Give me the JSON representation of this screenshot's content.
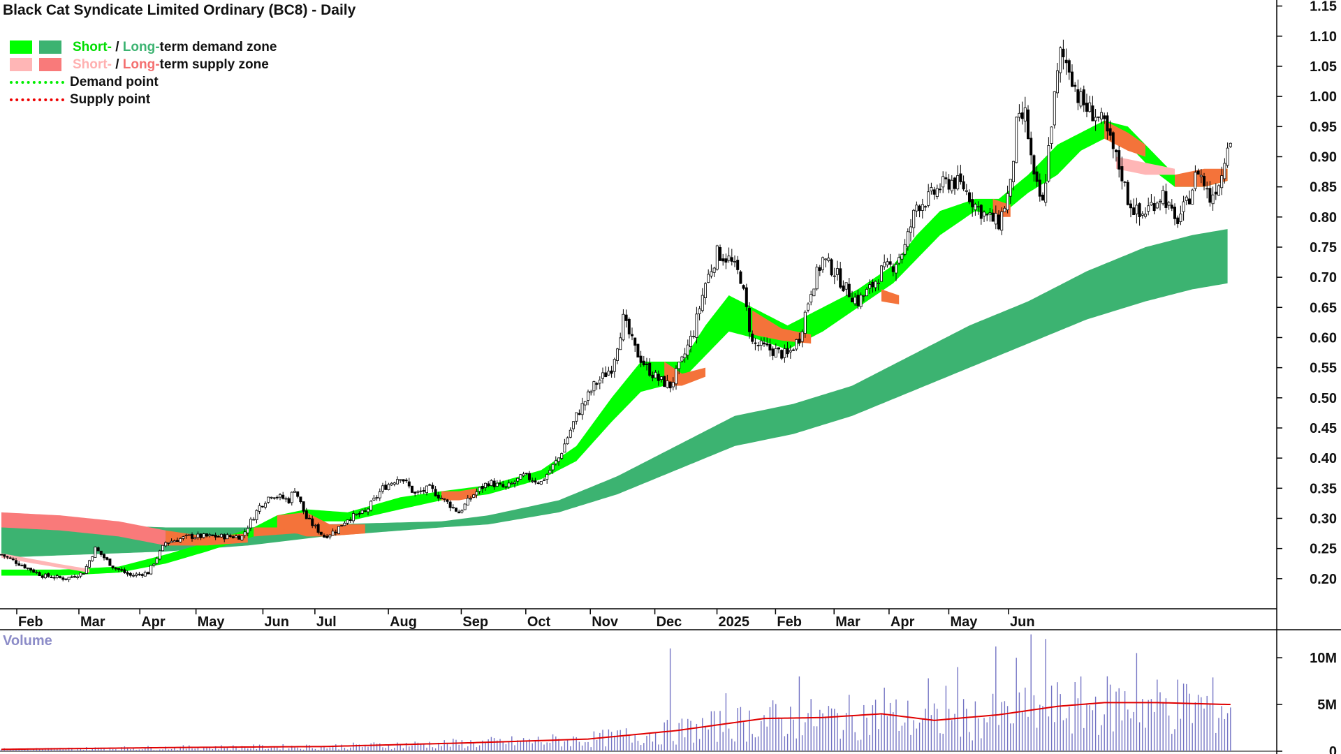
{
  "title": "Black Cat Syndicate Limited Ordinary (BC8) - Daily",
  "legend": {
    "demand_zone": {
      "short": "Short-",
      "sep": " / ",
      "long": "Long-",
      "rest": "term demand zone"
    },
    "supply_zone": {
      "short": "Short-",
      "sep": " / ",
      "long": "Long-",
      "rest": "term supply zone"
    },
    "demand_point": "Demand point",
    "supply_point": "Supply point"
  },
  "volume_label": "Volume",
  "colors": {
    "short_demand": "#00ff00",
    "long_demand": "#3cb371",
    "short_supply": "#ffb6b6",
    "long_supply": "#f97a7a",
    "overlap": "#f4733a",
    "demand_point": "#00ee00",
    "supply_point": "#ee0000",
    "volume_bar": "#7474c4",
    "volume_ma": "#e00000"
  },
  "chart_data": [
    {
      "type": "candlestick",
      "title": "Black Cat Syndicate Limited Ordinary (BC8) - Daily",
      "ylim": [
        0.15,
        1.16
      ],
      "y_ticks": [
        "1.15",
        "1.10",
        "1.05",
        "1.00",
        "0.95",
        "0.90",
        "0.85",
        "0.80",
        "0.75",
        "0.70",
        "0.65",
        "0.60",
        "0.55",
        "0.50",
        "0.45",
        "0.40",
        "0.35",
        "0.30",
        "0.25",
        "0.20"
      ],
      "x_ticks": [
        "Feb",
        "Mar",
        "Apr",
        "May",
        "Jun",
        "Jul",
        "Aug",
        "Sep",
        "Oct",
        "Nov",
        "Dec",
        "2025",
        "Feb",
        "Mar",
        "Apr",
        "May",
        "Jun"
      ],
      "close_anchors": [
        [
          0,
          0.24
        ],
        [
          8,
          0.22
        ],
        [
          14,
          0.205
        ],
        [
          22,
          0.2
        ],
        [
          28,
          0.21
        ],
        [
          32,
          0.25
        ],
        [
          38,
          0.22
        ],
        [
          44,
          0.205
        ],
        [
          50,
          0.21
        ],
        [
          56,
          0.26
        ],
        [
          64,
          0.27
        ],
        [
          72,
          0.27
        ],
        [
          82,
          0.27
        ],
        [
          88,
          0.32
        ],
        [
          92,
          0.34
        ],
        [
          98,
          0.33
        ],
        [
          100,
          0.35
        ],
        [
          104,
          0.3
        ],
        [
          110,
          0.27
        ],
        [
          114,
          0.28
        ],
        [
          118,
          0.3
        ],
        [
          124,
          0.31
        ],
        [
          130,
          0.35
        ],
        [
          136,
          0.37
        ],
        [
          141,
          0.34
        ],
        [
          146,
          0.35
        ],
        [
          151,
          0.33
        ],
        [
          156,
          0.31
        ],
        [
          161,
          0.34
        ],
        [
          166,
          0.36
        ],
        [
          172,
          0.35
        ],
        [
          178,
          0.37
        ],
        [
          184,
          0.36
        ],
        [
          190,
          0.4
        ],
        [
          196,
          0.47
        ],
        [
          202,
          0.52
        ],
        [
          208,
          0.55
        ],
        [
          212,
          0.63
        ],
        [
          216,
          0.58
        ],
        [
          220,
          0.55
        ],
        [
          224,
          0.53
        ],
        [
          228,
          0.52
        ],
        [
          232,
          0.56
        ],
        [
          236,
          0.61
        ],
        [
          240,
          0.69
        ],
        [
          244,
          0.74
        ],
        [
          248,
          0.73
        ],
        [
          252,
          0.7
        ],
        [
          256,
          0.59
        ],
        [
          262,
          0.58
        ],
        [
          268,
          0.57
        ],
        [
          272,
          0.6
        ],
        [
          276,
          0.68
        ],
        [
          280,
          0.73
        ],
        [
          284,
          0.71
        ],
        [
          288,
          0.68
        ],
        [
          292,
          0.66
        ],
        [
          296,
          0.68
        ],
        [
          300,
          0.71
        ],
        [
          304,
          0.72
        ],
        [
          308,
          0.75
        ],
        [
          312,
          0.82
        ],
        [
          316,
          0.83
        ],
        [
          320,
          0.85
        ],
        [
          324,
          0.86
        ],
        [
          328,
          0.85
        ],
        [
          332,
          0.82
        ],
        [
          336,
          0.8
        ],
        [
          340,
          0.79
        ],
        [
          344,
          0.85
        ],
        [
          346,
          0.95
        ],
        [
          349,
          0.97
        ],
        [
          352,
          0.86
        ],
        [
          355,
          0.82
        ],
        [
          358,
          0.96
        ],
        [
          361,
          1.07
        ],
        [
          364,
          1.05
        ],
        [
          367,
          1.0
        ],
        [
          370,
          0.98
        ],
        [
          373,
          0.97
        ],
        [
          376,
          0.95
        ],
        [
          379,
          0.91
        ],
        [
          382,
          0.87
        ],
        [
          384,
          0.83
        ],
        [
          388,
          0.8
        ],
        [
          392,
          0.82
        ],
        [
          396,
          0.84
        ],
        [
          400,
          0.79
        ],
        [
          404,
          0.82
        ],
        [
          408,
          0.88
        ],
        [
          412,
          0.83
        ],
        [
          416,
          0.87
        ],
        [
          418,
          0.93
        ]
      ],
      "short_demand_band_anchors": [
        [
          0,
          0.205,
          0.215
        ],
        [
          20,
          0.205,
          0.215
        ],
        [
          40,
          0.21,
          0.22
        ],
        [
          56,
          0.225,
          0.24
        ],
        [
          70,
          0.245,
          0.26
        ],
        [
          86,
          0.27,
          0.285
        ],
        [
          94,
          0.285,
          0.305
        ],
        [
          104,
          0.295,
          0.315
        ],
        [
          118,
          0.295,
          0.31
        ],
        [
          136,
          0.315,
          0.335
        ],
        [
          150,
          0.33,
          0.345
        ],
        [
          166,
          0.34,
          0.355
        ],
        [
          184,
          0.365,
          0.38
        ],
        [
          196,
          0.395,
          0.42
        ],
        [
          208,
          0.46,
          0.5
        ],
        [
          218,
          0.51,
          0.56
        ],
        [
          226,
          0.52,
          0.56
        ],
        [
          232,
          0.53,
          0.56
        ],
        [
          240,
          0.57,
          0.62
        ],
        [
          248,
          0.61,
          0.67
        ],
        [
          256,
          0.6,
          0.65
        ],
        [
          268,
          0.58,
          0.62
        ],
        [
          280,
          0.61,
          0.65
        ],
        [
          292,
          0.65,
          0.68
        ],
        [
          304,
          0.69,
          0.72
        ],
        [
          312,
          0.73,
          0.77
        ],
        [
          320,
          0.77,
          0.81
        ],
        [
          332,
          0.81,
          0.83
        ],
        [
          340,
          0.8,
          0.83
        ],
        [
          350,
          0.84,
          0.87
        ],
        [
          360,
          0.87,
          0.92
        ],
        [
          368,
          0.91,
          0.94
        ],
        [
          376,
          0.93,
          0.96
        ],
        [
          384,
          0.92,
          0.95
        ],
        [
          392,
          0.88,
          0.91
        ],
        [
          400,
          0.85,
          0.87
        ],
        [
          410,
          0.85,
          0.87
        ],
        [
          418,
          0.86,
          0.88
        ]
      ],
      "long_demand_band_anchors": [
        [
          0,
          0.235,
          0.295
        ],
        [
          56,
          0.245,
          0.285
        ],
        [
          84,
          0.255,
          0.285
        ],
        [
          110,
          0.27,
          0.29
        ],
        [
          150,
          0.285,
          0.295
        ],
        [
          166,
          0.29,
          0.305
        ],
        [
          190,
          0.31,
          0.33
        ],
        [
          210,
          0.34,
          0.37
        ],
        [
          230,
          0.38,
          0.42
        ],
        [
          250,
          0.42,
          0.47
        ],
        [
          270,
          0.44,
          0.49
        ],
        [
          290,
          0.47,
          0.52
        ],
        [
          310,
          0.51,
          0.57
        ],
        [
          330,
          0.55,
          0.62
        ],
        [
          350,
          0.59,
          0.66
        ],
        [
          370,
          0.63,
          0.71
        ],
        [
          390,
          0.66,
          0.75
        ],
        [
          406,
          0.68,
          0.77
        ],
        [
          418,
          0.69,
          0.78
        ]
      ],
      "short_supply_segments": [
        [
          [
            0,
            0.235,
            0.242
          ],
          [
            10,
            0.226,
            0.233
          ],
          [
            20,
            0.218,
            0.224
          ],
          [
            30,
            0.21,
            0.216
          ]
        ],
        [
          [
            380,
            0.88,
            0.9
          ],
          [
            390,
            0.87,
            0.89
          ],
          [
            400,
            0.87,
            0.88
          ]
        ]
      ],
      "long_supply_segments": [
        [
          [
            0,
            0.285,
            0.31
          ],
          [
            20,
            0.28,
            0.305
          ],
          [
            40,
            0.27,
            0.295
          ],
          [
            56,
            0.255,
            0.28
          ]
        ]
      ],
      "orange_segments": [
        [
          [
            56,
            0.255,
            0.28
          ],
          [
            70,
            0.255,
            0.27
          ],
          [
            84,
            0.26,
            0.275
          ]
        ],
        [
          [
            86,
            0.27,
            0.285
          ],
          [
            100,
            0.275,
            0.285
          ],
          [
            110,
            0.27,
            0.29
          ],
          [
            124,
            0.275,
            0.29
          ]
        ],
        [
          [
            94,
            0.285,
            0.305
          ],
          [
            104,
            0.27,
            0.31
          ],
          [
            112,
            0.27,
            0.29
          ]
        ],
        [
          [
            150,
            0.33,
            0.345
          ],
          [
            156,
            0.33,
            0.345
          ],
          [
            162,
            0.335,
            0.35
          ]
        ],
        [
          [
            226,
            0.52,
            0.56
          ],
          [
            232,
            0.52,
            0.54
          ],
          [
            240,
            0.535,
            0.55
          ]
        ],
        [
          [
            256,
            0.605,
            0.645
          ],
          [
            266,
            0.595,
            0.615
          ],
          [
            276,
            0.59,
            0.605
          ]
        ],
        [
          [
            300,
            0.66,
            0.68
          ],
          [
            306,
            0.655,
            0.67
          ]
        ],
        [
          [
            338,
            0.8,
            0.83
          ],
          [
            344,
            0.8,
            0.82
          ]
        ],
        [
          [
            376,
            0.93,
            0.96
          ],
          [
            384,
            0.91,
            0.94
          ],
          [
            390,
            0.9,
            0.92
          ]
        ],
        [
          [
            400,
            0.85,
            0.87
          ],
          [
            410,
            0.85,
            0.88
          ],
          [
            418,
            0.86,
            0.88
          ]
        ]
      ]
    },
    {
      "type": "bar",
      "title": "Volume",
      "ylim": [
        0,
        11500000
      ],
      "y_ticks": [
        "10M",
        "5M",
        "0"
      ],
      "tick_values": [
        10000000,
        5000000,
        0
      ],
      "moving_average_anchors": [
        [
          0,
          0.2
        ],
        [
          60,
          0.4
        ],
        [
          110,
          0.5
        ],
        [
          160,
          0.9
        ],
        [
          200,
          1.3
        ],
        [
          230,
          2.2
        ],
        [
          260,
          3.5
        ],
        [
          280,
          3.6
        ],
        [
          300,
          4.0
        ],
        [
          318,
          3.3
        ],
        [
          340,
          3.9
        ],
        [
          360,
          4.8
        ],
        [
          376,
          5.2
        ],
        [
          394,
          5.2
        ],
        [
          418,
          5.0
        ]
      ],
      "spikes": [
        [
          228,
          11.0
        ],
        [
          326,
          9.0
        ],
        [
          339,
          11.2
        ],
        [
          351,
          12.5
        ],
        [
          356,
          12.0
        ],
        [
          387,
          10.5
        ],
        [
          346,
          10.0
        ],
        [
          247,
          6.2
        ],
        [
          272,
          8.0
        ],
        [
          322,
          7.0
        ],
        [
          316,
          7.8
        ],
        [
          301,
          6.8
        ]
      ]
    }
  ]
}
